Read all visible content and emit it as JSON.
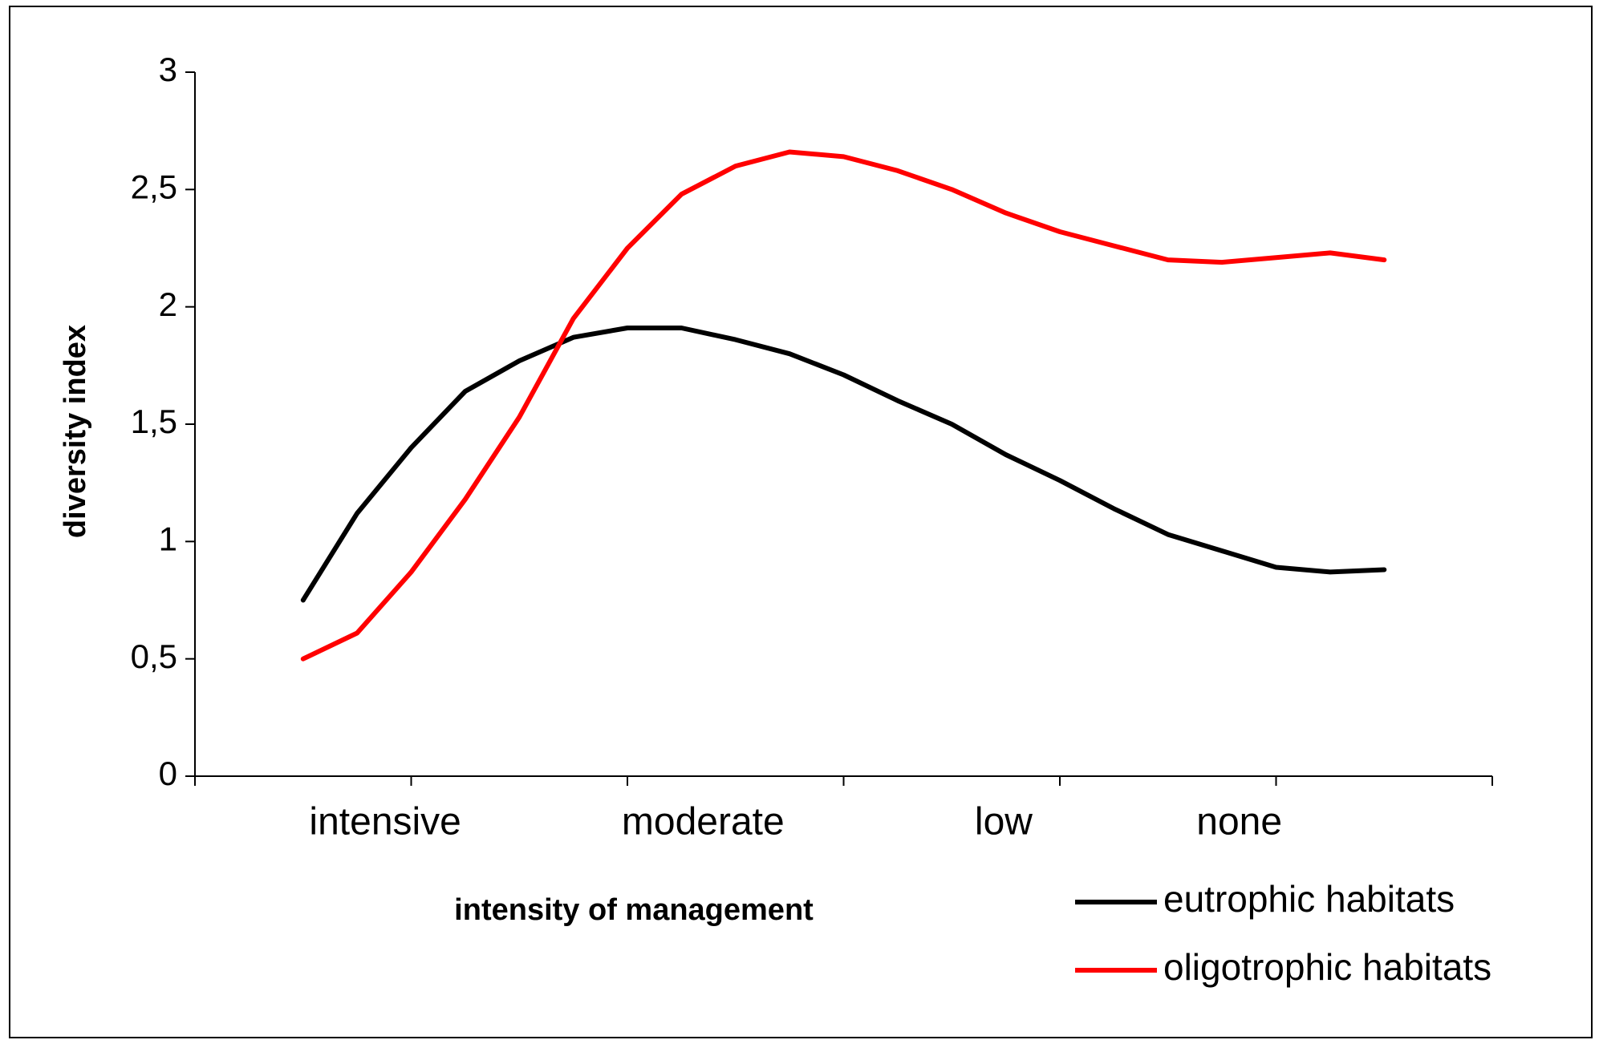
{
  "chart_data": {
    "type": "line",
    "x_label": "intensity of management",
    "y_label": "diversity index",
    "categories": [
      "intensive",
      "moderate",
      "low",
      "none"
    ],
    "x": [
      0.5,
      0.75,
      1.0,
      1.25,
      1.5,
      1.75,
      2.0,
      2.25,
      2.5,
      2.75,
      3.0,
      3.25,
      3.5,
      3.75,
      4.0,
      4.25,
      4.5,
      4.75,
      5.0,
      5.25,
      5.5
    ],
    "series": [
      {
        "name": "eutrophic habitats",
        "color": "#000000",
        "values": [
          0.75,
          1.12,
          1.4,
          1.64,
          1.77,
          1.87,
          1.91,
          1.91,
          1.86,
          1.8,
          1.71,
          1.6,
          1.5,
          1.37,
          1.26,
          1.14,
          1.03,
          0.96,
          0.89,
          0.87,
          0.88
        ]
      },
      {
        "name": "oligotrophic habitats",
        "color": "#ff0000",
        "values": [
          0.5,
          0.61,
          0.87,
          1.18,
          1.53,
          1.95,
          2.25,
          2.48,
          2.6,
          2.66,
          2.64,
          2.58,
          2.5,
          2.4,
          2.32,
          2.26,
          2.2,
          2.19,
          2.21,
          2.23,
          2.2
        ]
      }
    ],
    "xlim": [
      0,
      6
    ],
    "xticks": [
      0,
      1,
      2,
      3,
      4,
      5,
      6
    ],
    "ylim": [
      0,
      3
    ],
    "yticks": [
      0,
      {
        "value": 0.5,
        "label": "0,5"
      },
      1,
      {
        "value": 1.5,
        "label": "1,5"
      },
      2,
      {
        "value": 2.5,
        "label": "2,5"
      },
      3
    ],
    "grid": false,
    "legend": "lower right"
  }
}
